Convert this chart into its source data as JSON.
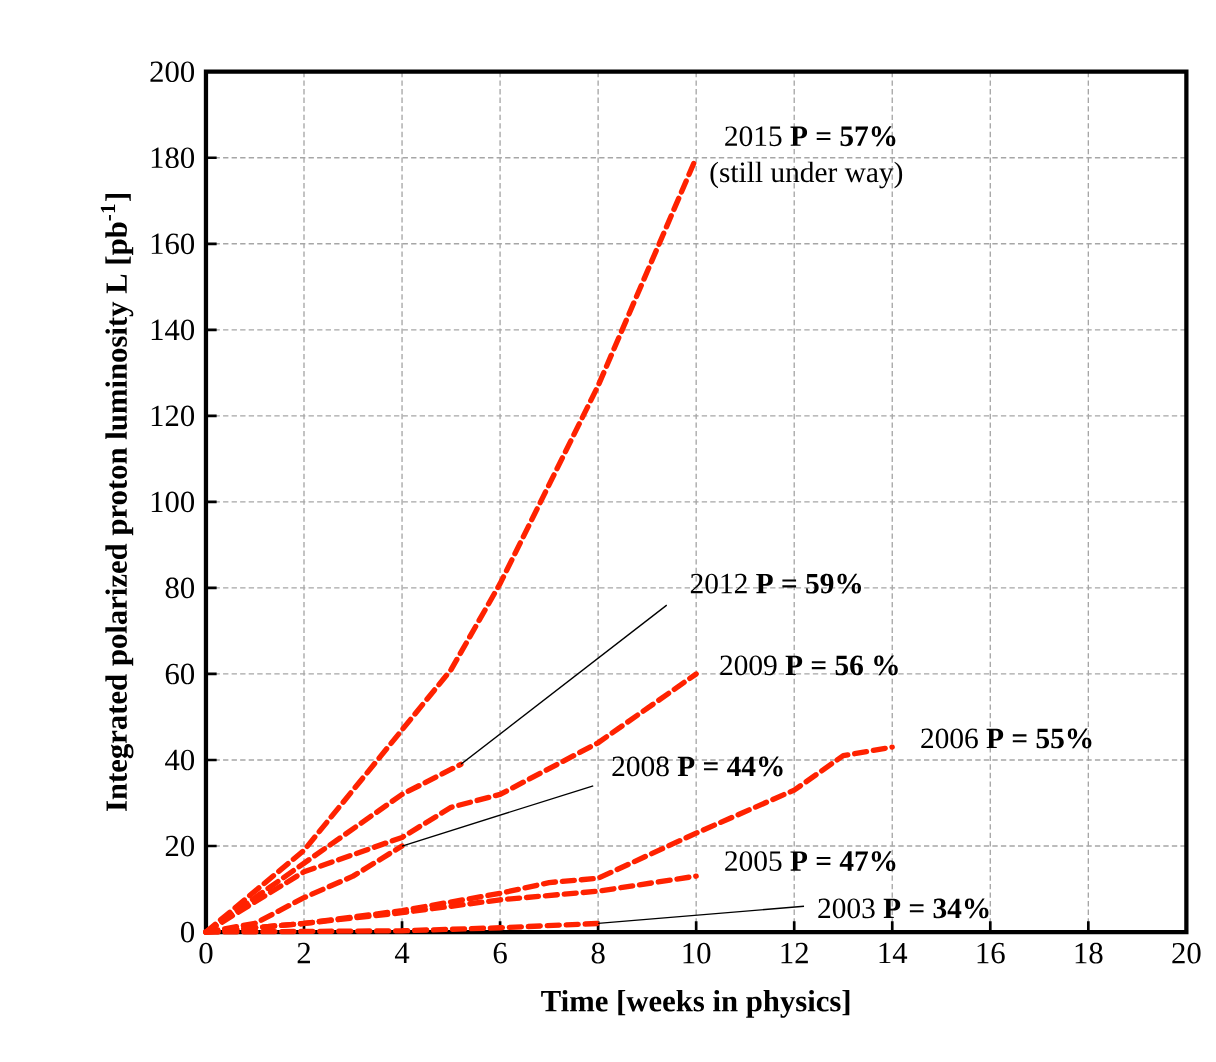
{
  "chart_data": {
    "type": "line",
    "xlabel": "Time [weeks in physics]",
    "ylabel": "Integrated polarized proton luminosity L [pb$^{-1}$]",
    "xlim": [
      0,
      20
    ],
    "xticks": [
      0,
      2,
      4,
      6,
      8,
      10,
      12,
      14,
      16,
      18,
      20
    ],
    "ylim": [
      0,
      200
    ],
    "yticks": [
      0,
      20,
      40,
      60,
      80,
      100,
      120,
      140,
      160,
      180,
      200
    ],
    "grid": true,
    "line_style": "dashed",
    "marker": "none",
    "legend": false,
    "annotations": [
      "(still under way)"
    ],
    "series": [
      {
        "name": "2015 **P = 57%**",
        "color": "#ff2200",
        "x": [
          0,
          2,
          4,
          5,
          6,
          8,
          10
        ],
        "values": [
          0,
          19,
          47,
          61,
          81,
          127,
          180
        ]
      },
      {
        "name": "2012  **P = 59%**",
        "color": "#ff2200",
        "x": [
          0,
          2,
          4,
          5.2
        ],
        "values": [
          0,
          16,
          32,
          39
        ]
      },
      {
        "name": "2009 **P = 56 %**",
        "color": "#ff2200",
        "x": [
          0,
          2,
          4,
          5,
          6,
          7,
          8,
          10
        ],
        "values": [
          0,
          14,
          22,
          29,
          32,
          38,
          44,
          60
        ]
      },
      {
        "name": "2008  **P = 44%**",
        "color": "#ff2200",
        "x": [
          0,
          1,
          2,
          3,
          4
        ],
        "values": [
          0,
          2,
          8,
          13,
          20
        ]
      },
      {
        "name": "2006  **P = 55%**",
        "color": "#ff2200",
        "x": [
          0,
          2,
          4,
          6,
          7,
          8,
          10,
          12,
          13,
          14
        ],
        "values": [
          0,
          2,
          5,
          9,
          11.5,
          12.5,
          23,
          33,
          41,
          43
        ]
      },
      {
        "name": "2005  **P = 47%**",
        "color": "#ff2200",
        "x": [
          0,
          2,
          4,
          6,
          8,
          10
        ],
        "values": [
          0,
          2,
          4.5,
          7.5,
          9.5,
          13
        ]
      },
      {
        "name": "2003  **P = 34%**",
        "color": "#ff2200",
        "x": [
          0,
          4,
          6,
          8
        ],
        "values": [
          0,
          0.3,
          1,
          2
        ]
      }
    ]
  }
}
